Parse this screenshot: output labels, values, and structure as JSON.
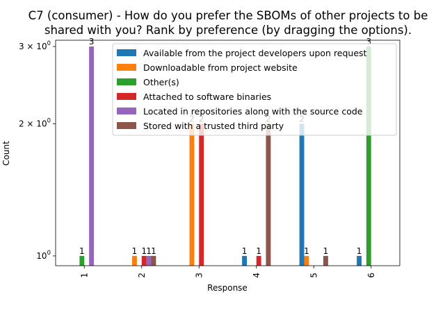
{
  "chart_data": {
    "type": "bar",
    "title_lines": [
      "C7 (consumer) - How do you prefer the SBOMs of other projects to be",
      "shared with you? Rank by preference (by dragging the options)."
    ],
    "xlabel": "Response",
    "ylabel": "Count",
    "yscale": "log",
    "ylim": [
      0.95,
      3.1
    ],
    "yticks": [
      {
        "value": 1,
        "base": "10",
        "exp": "0",
        "mult": ""
      },
      {
        "value": 2,
        "base": "10",
        "exp": "0",
        "mult": "2 × "
      },
      {
        "value": 3,
        "base": "10",
        "exp": "0",
        "mult": "3 × "
      }
    ],
    "categories": [
      "1",
      "2",
      "3",
      "4",
      "5",
      "6"
    ],
    "legend_position": "upper-right",
    "series": [
      {
        "name": "Available from the project developers upon request",
        "color": "#1f77b4",
        "values": [
          null,
          null,
          null,
          1,
          2,
          1
        ]
      },
      {
        "name": "Downloadable from project website",
        "color": "#ff7f0e",
        "values": [
          null,
          1,
          2,
          null,
          1,
          null
        ]
      },
      {
        "name": "Other(s)",
        "color": "#2ca02c",
        "values": [
          1,
          null,
          null,
          null,
          null,
          3
        ]
      },
      {
        "name": "Attached to software binaries",
        "color": "#d62728",
        "values": [
          null,
          1,
          2,
          1,
          null,
          null
        ]
      },
      {
        "name": "Located in repositories along with the source code",
        "color": "#9467bd",
        "values": [
          3,
          1,
          null,
          null,
          null,
          null
        ]
      },
      {
        "name": "Stored with a trusted third party",
        "color": "#8c564b",
        "values": [
          null,
          1,
          null,
          2,
          1,
          null
        ]
      }
    ]
  }
}
